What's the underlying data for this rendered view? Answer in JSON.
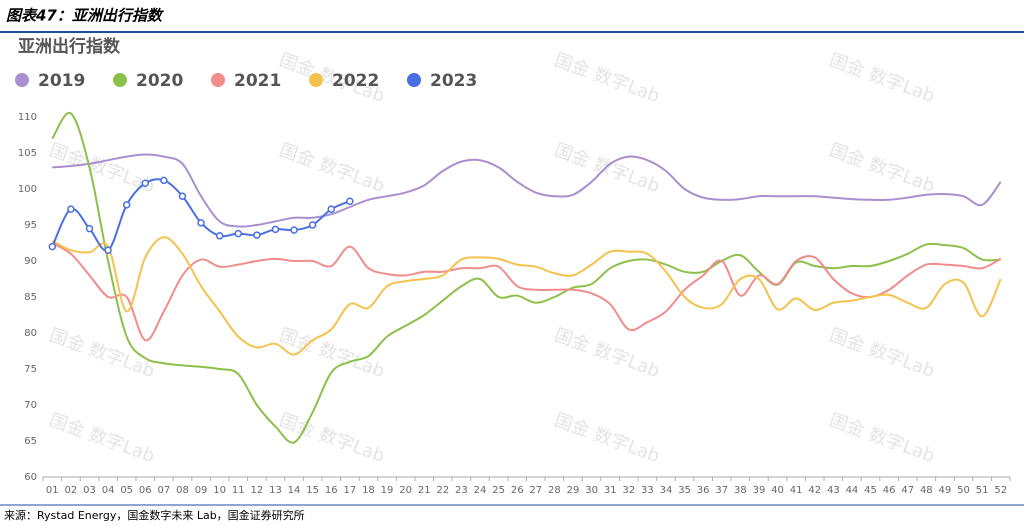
{
  "header": {
    "title": "图表47：亚洲出行指数"
  },
  "chart_data": {
    "type": "line",
    "title": "亚洲出行指数",
    "categories": [
      "01",
      "02",
      "03",
      "04",
      "05",
      "06",
      "07",
      "08",
      "09",
      "10",
      "11",
      "12",
      "13",
      "14",
      "15",
      "16",
      "17",
      "18",
      "19",
      "20",
      "21",
      "22",
      "23",
      "24",
      "25",
      "26",
      "27",
      "28",
      "29",
      "30",
      "31",
      "32",
      "33",
      "34",
      "35",
      "36",
      "37",
      "38",
      "39",
      "40",
      "41",
      "42",
      "43",
      "44",
      "45",
      "46",
      "47",
      "48",
      "49",
      "50",
      "51",
      "52"
    ],
    "series": [
      {
        "name": "2019",
        "color": "#a98fd0",
        "values": [
          103,
          103.2,
          103.5,
          104,
          104.5,
          104.8,
          104.5,
          103.5,
          99,
          95.5,
          94.8,
          95,
          95.5,
          96,
          96,
          96.5,
          97.5,
          98.5,
          99,
          99.5,
          100.5,
          102.5,
          103.8,
          104,
          103,
          101,
          99.5,
          99,
          99.2,
          101,
          103.5,
          104.5,
          104,
          102.5,
          100,
          98.8,
          98.5,
          98.6,
          99,
          99,
          99,
          99,
          98.8,
          98.6,
          98.5,
          98.5,
          98.8,
          99.2,
          99.3,
          99,
          97.8,
          101
        ]
      },
      {
        "name": "2020",
        "color": "#8dc04a",
        "values": [
          107,
          110.5,
          103,
          90,
          79.5,
          76.5,
          75.8,
          75.5,
          75.3,
          75,
          74.3,
          70,
          67,
          64.8,
          69,
          74.5,
          76,
          76.8,
          79.5,
          81,
          82.5,
          84.5,
          86.5,
          87.5,
          85,
          85.2,
          84.2,
          85,
          86.3,
          86.8,
          89,
          90,
          90.2,
          89.5,
          88.5,
          88.5,
          90,
          90.8,
          88.5,
          86.7,
          89.8,
          89.3,
          89,
          89.3,
          89.3,
          90,
          91,
          92.3,
          92.2,
          91.8,
          90.2,
          90.2
        ]
      },
      {
        "name": "2021",
        "color": "#f08c8c",
        "values": [
          92.5,
          91,
          88,
          85,
          85,
          79,
          83,
          88,
          90.2,
          89.2,
          89.5,
          90,
          90.3,
          90,
          90,
          89.3,
          92,
          89,
          88.2,
          88,
          88.5,
          88.5,
          89,
          89,
          89.2,
          86.5,
          86,
          86,
          86,
          85.5,
          84,
          80.5,
          81.5,
          83,
          86,
          88,
          90,
          85.2,
          88,
          86.8,
          90,
          90.5,
          87.5,
          85.5,
          85,
          86,
          88,
          89.5,
          89.5,
          89.3,
          89,
          90.3
        ]
      },
      {
        "name": "2022",
        "color": "#f5c24e",
        "values": [
          92.8,
          91.5,
          91.2,
          92,
          83,
          90.5,
          93.3,
          91,
          86.5,
          83,
          79.5,
          78,
          78.5,
          77,
          79,
          80.5,
          84,
          83.5,
          86.5,
          87.2,
          87.5,
          88,
          90.2,
          90.5,
          90.3,
          89.5,
          89.2,
          88.3,
          88,
          89.5,
          91.3,
          91.3,
          91,
          88.5,
          85,
          83.5,
          84,
          87.5,
          87.5,
          83.3,
          84.8,
          83.2,
          84.2,
          84.5,
          85,
          85.3,
          84.2,
          83.5,
          86.8,
          87,
          82.3,
          87.5
        ]
      },
      {
        "name": "2023",
        "color": "#4a6fe3",
        "markers": true,
        "values": [
          92,
          97.2,
          94.5,
          91.5,
          97.8,
          100.8,
          101.2,
          99,
          95.3,
          93.5,
          93.8,
          93.6,
          94.4,
          94.3,
          95,
          97.2,
          98.3,
          null,
          null,
          null,
          null,
          null,
          null,
          null,
          null,
          null,
          null,
          null,
          null,
          null,
          null,
          null,
          null,
          null,
          null,
          null,
          null,
          null,
          null,
          null,
          null,
          null,
          null,
          null,
          null,
          null,
          null,
          null,
          null,
          null,
          null,
          null
        ]
      }
    ],
    "ylim": [
      60,
      110
    ],
    "yticks": [
      60,
      65,
      70,
      75,
      80,
      85,
      90,
      95,
      100,
      105,
      110
    ],
    "grid": false,
    "watermark": "国金 数字Lab",
    "source": "来源：Rystad Energy，国金数字未来 Lab，国金证券研究所"
  }
}
